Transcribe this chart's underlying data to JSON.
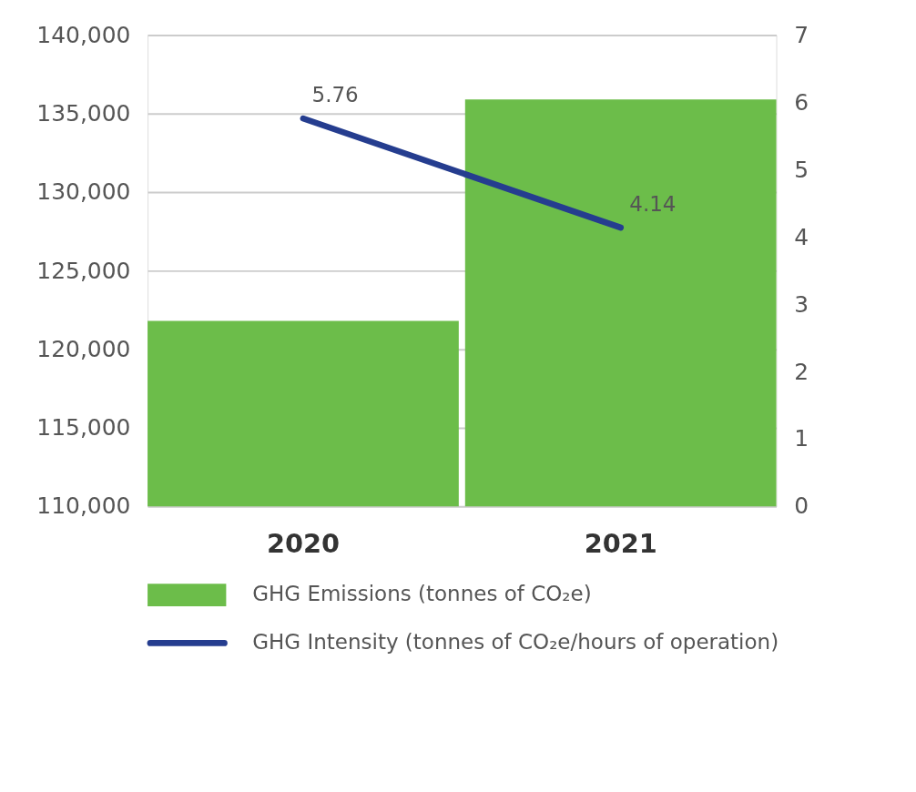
{
  "chart_data": {
    "type": "bar",
    "categories": [
      "2020",
      "2021"
    ],
    "series": [
      {
        "name": "GHG Emissions (tonnes of CO₂e)",
        "color": "#6cbd4a",
        "values": [
          121800,
          135900
        ]
      },
      {
        "name": "GHG Intensity (tonnes of CO₂e/hours of operation)",
        "type": "line",
        "axis": "y2",
        "color": "#253d8f",
        "values": [
          5.76,
          4.14
        ],
        "value_labels": [
          "5.76",
          "4.14"
        ]
      }
    ],
    "ylim": [
      110000,
      140000
    ],
    "yticks": [
      {
        "value": 110000,
        "label": "110,000"
      },
      {
        "value": 115000,
        "label": "115,000"
      },
      {
        "value": 120000,
        "label": "120,000"
      },
      {
        "value": 125000,
        "label": "125,000"
      },
      {
        "value": 130000,
        "label": "130,000"
      },
      {
        "value": 135000,
        "label": "135,000"
      },
      {
        "value": 140000,
        "label": "140,000"
      }
    ],
    "y2lim": [
      0,
      7
    ],
    "y2ticks": [
      0,
      1,
      2,
      3,
      4,
      5,
      6,
      7
    ],
    "grid": "y",
    "legend": "bottom"
  }
}
